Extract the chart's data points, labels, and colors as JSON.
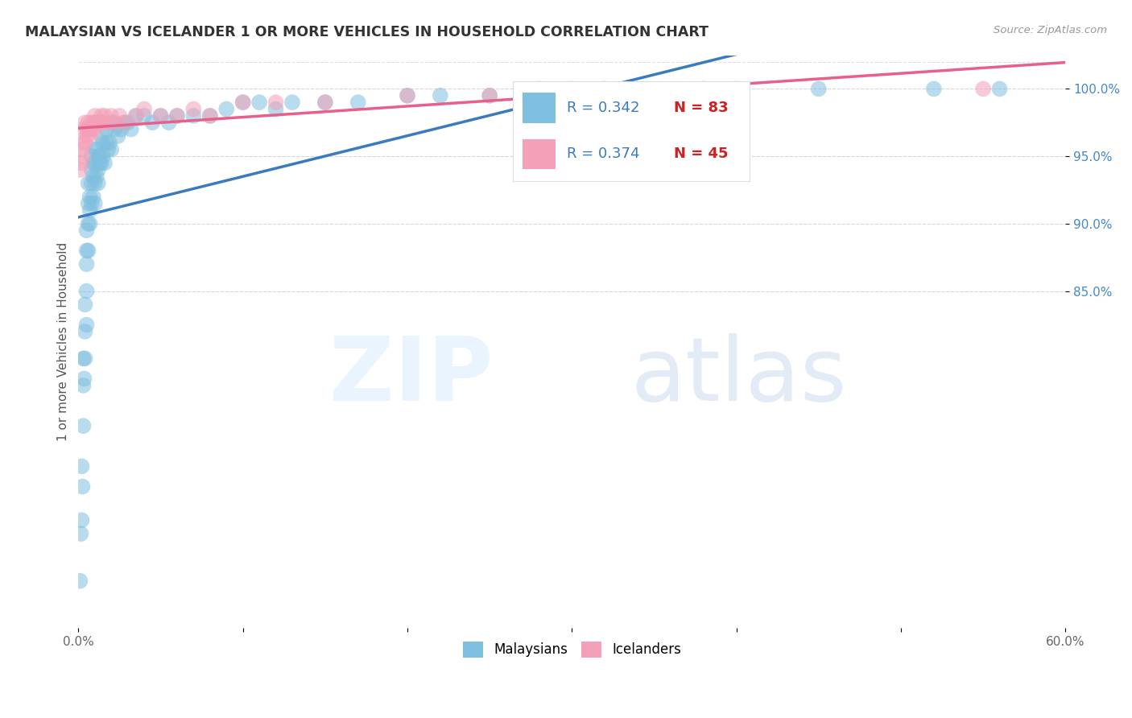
{
  "title": "MALAYSIAN VS ICELANDER 1 OR MORE VEHICLES IN HOUSEHOLD CORRELATION CHART",
  "source": "Source: ZipAtlas.com",
  "ylabel": "1 or more Vehicles in Household",
  "xlim": [
    0.0,
    60.0
  ],
  "ylim": [
    60.0,
    102.5
  ],
  "yticks": [
    85.0,
    90.0,
    95.0,
    100.0
  ],
  "xticks": [
    0.0,
    10.0,
    20.0,
    30.0,
    40.0,
    50.0,
    60.0
  ],
  "malaysian_r": 0.342,
  "malaysian_n": 83,
  "icelander_r": 0.374,
  "icelander_n": 45,
  "blue_color": "#7fbfdf",
  "pink_color": "#f4a0b8",
  "blue_line_color": "#3a7abf",
  "pink_line_color": "#e8608a",
  "legend_text_color": "#3a7abf",
  "legend_n_color": "#cc2222",
  "malaysian_x": [
    0.1,
    0.15,
    0.2,
    0.2,
    0.25,
    0.3,
    0.3,
    0.3,
    0.35,
    0.4,
    0.4,
    0.4,
    0.5,
    0.5,
    0.5,
    0.5,
    0.5,
    0.6,
    0.6,
    0.6,
    0.7,
    0.7,
    0.7,
    0.8,
    0.8,
    0.8,
    0.9,
    0.9,
    0.9,
    1.0,
    1.0,
    1.0,
    1.0,
    1.1,
    1.2,
    1.2,
    1.2,
    1.3,
    1.3,
    1.4,
    1.5,
    1.5,
    1.6,
    1.7,
    1.8,
    1.9,
    2.0,
    2.2,
    2.4,
    2.6,
    2.8,
    3.0,
    3.5,
    4.0,
    4.5,
    5.0,
    5.5,
    6.0,
    7.0,
    8.0,
    9.0,
    10.0,
    11.0,
    12.0,
    13.0,
    15.0,
    17.0,
    20.0,
    22.0,
    25.0,
    28.0,
    32.0,
    38.0,
    45.0,
    52.0,
    56.0,
    0.6,
    0.8,
    1.1,
    1.4,
    1.7,
    2.1,
    3.2
  ],
  "malaysian_y": [
    63.5,
    67.0,
    68.0,
    72.0,
    70.5,
    75.0,
    78.0,
    80.0,
    78.5,
    80.0,
    82.0,
    84.0,
    82.5,
    85.0,
    87.0,
    88.0,
    89.5,
    88.0,
    90.0,
    91.5,
    90.0,
    91.0,
    92.0,
    91.5,
    93.0,
    94.0,
    92.0,
    93.5,
    94.5,
    91.5,
    93.0,
    94.5,
    95.5,
    93.5,
    93.0,
    94.0,
    95.0,
    94.5,
    95.0,
    94.5,
    95.0,
    96.0,
    94.5,
    96.0,
    95.5,
    96.0,
    95.5,
    97.0,
    96.5,
    97.0,
    97.5,
    97.5,
    98.0,
    98.0,
    97.5,
    98.0,
    97.5,
    98.0,
    98.0,
    98.0,
    98.5,
    99.0,
    99.0,
    98.5,
    99.0,
    99.0,
    99.0,
    99.5,
    99.5,
    99.5,
    100.0,
    100.0,
    100.0,
    100.0,
    100.0,
    100.0,
    93.0,
    95.0,
    95.5,
    96.5,
    97.0,
    97.5,
    97.0
  ],
  "icelander_x": [
    0.1,
    0.15,
    0.2,
    0.25,
    0.3,
    0.3,
    0.4,
    0.4,
    0.5,
    0.5,
    0.6,
    0.6,
    0.7,
    0.7,
    0.8,
    0.8,
    0.9,
    1.0,
    1.0,
    1.0,
    1.1,
    1.2,
    1.3,
    1.4,
    1.5,
    1.6,
    1.8,
    2.0,
    2.2,
    2.5,
    2.8,
    3.5,
    4.0,
    5.0,
    6.0,
    7.0,
    8.0,
    10.0,
    12.0,
    15.0,
    20.0,
    25.0,
    30.0,
    40.0,
    55.0
  ],
  "icelander_y": [
    94.0,
    94.5,
    95.5,
    96.0,
    95.0,
    97.0,
    96.0,
    97.5,
    96.5,
    97.0,
    97.0,
    97.5,
    96.5,
    97.0,
    97.5,
    97.0,
    97.5,
    97.0,
    97.5,
    98.0,
    97.5,
    97.5,
    97.5,
    98.0,
    97.5,
    98.0,
    97.5,
    98.0,
    97.5,
    98.0,
    97.5,
    98.0,
    98.5,
    98.0,
    98.0,
    98.5,
    98.0,
    99.0,
    99.0,
    99.0,
    99.5,
    99.5,
    100.0,
    100.0,
    100.0
  ]
}
